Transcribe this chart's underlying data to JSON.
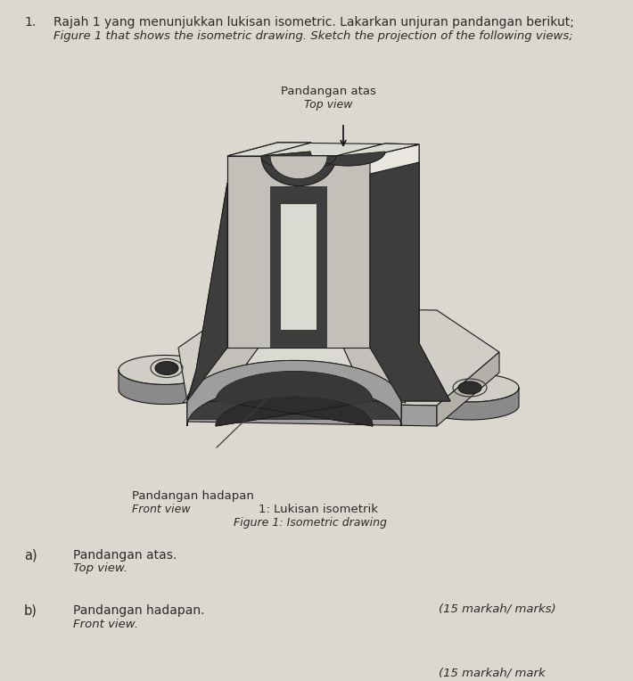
{
  "bg_color": "#ddd8cf",
  "title_number": "1.",
  "title_malay": "Rajah 1 yang menunjukkan lukisan isometric. Lakarkan unjuran pandangan berikut;",
  "title_english": "Figure 1 that shows the isometric drawing. Sketch the projection of the following views;",
  "top_label_malay": "Pandangan atas",
  "top_label_english": "Top view",
  "front_label_malay": "Pandangan hadapan",
  "front_label_english": "Front view",
  "figure_label_malay": "1: Lukisan isometrik",
  "figure_label_english": "Figure 1: Isometric drawing",
  "a_label": "a)",
  "a_malay": "Pandangan atas.",
  "a_english": "Top view.",
  "b_label": "b)",
  "b_malay": "Pandangan hadapan.",
  "b_english": "Front view.",
  "marks_15a": "(15 markah/ marks)",
  "marks_15b": "(15 markah/ mark",
  "text_color": "#2a2a2a"
}
